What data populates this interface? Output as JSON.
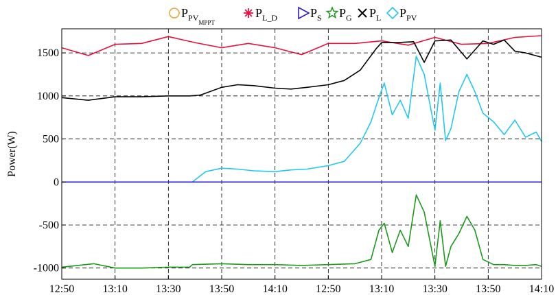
{
  "chart_data": {
    "type": "line",
    "ylabel": "Power(W)",
    "xlabel": "",
    "ylim": [
      -1130,
      1780
    ],
    "yticks": [
      1500,
      1000,
      500,
      0,
      -500,
      -1000
    ],
    "ytick_labels": [
      "1500",
      "1000",
      "500",
      "0",
      "-500",
      "-1000"
    ],
    "xtick_labels": [
      "12:50",
      "13:10",
      "13:30",
      "13:50",
      "14:10",
      "12:50",
      "13:10",
      "13:30",
      "13:50",
      "14:10"
    ],
    "x_index_range": [
      0,
      9
    ],
    "grid": true,
    "legend_position": "top",
    "legend": [
      {
        "key": "ppv_mppt",
        "base": "P",
        "sub": "PV",
        "subsub": "MPPT",
        "color": "#f0a030",
        "marker": "circle"
      },
      {
        "key": "pld",
        "base": "P",
        "sub": "L_D",
        "subsub": "",
        "color": "#e8103c",
        "marker": "asterisk"
      },
      {
        "key": "ps",
        "base": "P",
        "sub": "S",
        "subsub": "",
        "color": "#2a1ad0",
        "marker": "triangle"
      },
      {
        "key": "pg",
        "base": "P",
        "sub": "G",
        "subsub": "",
        "color": "#1a9a1a",
        "marker": "star"
      },
      {
        "key": "pl",
        "base": "P",
        "sub": "L",
        "subsub": "",
        "color": "#000000",
        "marker": "cross"
      },
      {
        "key": "ppv",
        "base": "P",
        "sub": "PV",
        "subsub": "",
        "color": "#22c8f0",
        "marker": "diamond"
      }
    ],
    "series": [
      {
        "key": "pld",
        "color": "#e8103c",
        "x": [
          0,
          0.5,
          1.0,
          1.5,
          2.0,
          2.5,
          3.0,
          3.5,
          4.0,
          4.5,
          5.0,
          5.5,
          6.0,
          6.5,
          7.0,
          7.5,
          8.0,
          8.5,
          9.0
        ],
        "y": [
          1560,
          1470,
          1600,
          1610,
          1690,
          1620,
          1560,
          1610,
          1560,
          1480,
          1610,
          1610,
          1640,
          1590,
          1680,
          1600,
          1610,
          1680,
          1700
        ]
      },
      {
        "key": "pl",
        "color": "#000000",
        "x": [
          0,
          0.5,
          1.0,
          1.5,
          2.0,
          2.4,
          2.6,
          3.0,
          3.3,
          3.6,
          4.0,
          4.3,
          4.6,
          5.0,
          5.3,
          5.6,
          5.9,
          6.0,
          6.3,
          6.6,
          6.8,
          7.0,
          7.3,
          7.6,
          7.9,
          8.1,
          8.3,
          8.5,
          8.7,
          9.0
        ],
        "y": [
          980,
          950,
          990,
          990,
          1000,
          1000,
          1010,
          1100,
          1130,
          1120,
          1090,
          1080,
          1100,
          1130,
          1180,
          1300,
          1550,
          1620,
          1620,
          1630,
          1390,
          1640,
          1650,
          1430,
          1640,
          1600,
          1650,
          1520,
          1500,
          1450
        ]
      },
      {
        "key": "ppv",
        "color": "#22c8f0",
        "x": [
          0,
          1.0,
          2.0,
          2.45,
          2.7,
          3.0,
          3.3,
          3.6,
          4.0,
          4.3,
          4.6,
          5.0,
          5.3,
          5.6,
          5.8,
          5.95,
          6.05,
          6.2,
          6.35,
          6.5,
          6.65,
          6.8,
          7.0,
          7.1,
          7.2,
          7.3,
          7.45,
          7.6,
          7.75,
          7.9,
          8.1,
          8.3,
          8.5,
          8.7,
          8.9,
          9.0
        ],
        "y": [
          0,
          0,
          0,
          0,
          120,
          160,
          150,
          130,
          120,
          140,
          150,
          190,
          240,
          450,
          700,
          980,
          1150,
          780,
          950,
          740,
          1460,
          1250,
          600,
          1150,
          480,
          620,
          1050,
          1250,
          1050,
          800,
          700,
          550,
          720,
          520,
          580,
          470
        ]
      },
      {
        "key": "ps",
        "color": "#2a1ad0",
        "x": [
          0,
          9
        ],
        "y": [
          0,
          0
        ]
      },
      {
        "key": "pg",
        "color": "#1a9a1a",
        "x": [
          0,
          0.3,
          0.6,
          1.0,
          1.5,
          2.0,
          2.4,
          2.45,
          3.0,
          3.5,
          4.0,
          4.5,
          5.0,
          5.5,
          5.8,
          5.95,
          6.05,
          6.2,
          6.35,
          6.5,
          6.65,
          6.8,
          7.0,
          7.1,
          7.2,
          7.3,
          7.45,
          7.6,
          7.75,
          7.9,
          8.1,
          8.3,
          8.5,
          8.7,
          8.9,
          9.0
        ],
        "y": [
          -990,
          -970,
          -950,
          -1000,
          -1000,
          -990,
          -990,
          -960,
          -950,
          -960,
          -960,
          -970,
          -960,
          -950,
          -900,
          -560,
          -480,
          -820,
          -560,
          -750,
          -150,
          -350,
          -980,
          -450,
          -980,
          -750,
          -600,
          -400,
          -560,
          -900,
          -960,
          -960,
          -970,
          -970,
          -960,
          -980
        ]
      }
    ]
  }
}
